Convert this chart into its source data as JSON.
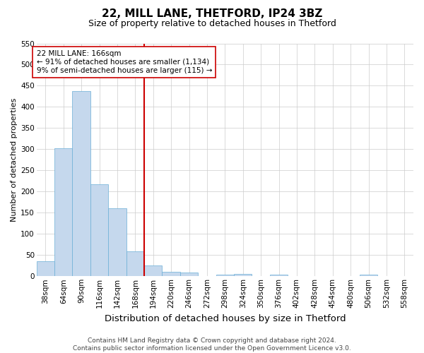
{
  "title1": "22, MILL LANE, THETFORD, IP24 3BZ",
  "title2": "Size of property relative to detached houses in Thetford",
  "xlabel": "Distribution of detached houses by size in Thetford",
  "ylabel": "Number of detached properties",
  "categories": [
    "38sqm",
    "64sqm",
    "90sqm",
    "116sqm",
    "142sqm",
    "168sqm",
    "194sqm",
    "220sqm",
    "246sqm",
    "272sqm",
    "298sqm",
    "324sqm",
    "350sqm",
    "376sqm",
    "402sqm",
    "428sqm",
    "454sqm",
    "480sqm",
    "506sqm",
    "532sqm",
    "558sqm"
  ],
  "values": [
    35,
    302,
    438,
    217,
    160,
    58,
    25,
    11,
    8,
    0,
    4,
    5,
    0,
    3,
    0,
    0,
    0,
    0,
    4,
    0,
    0
  ],
  "bar_color": "#c5d8ed",
  "bar_edge_color": "#6aaed6",
  "vline_x_index": 5,
  "vline_color": "#cc0000",
  "annotation_text": "22 MILL LANE: 166sqm\n← 91% of detached houses are smaller (1,134)\n9% of semi-detached houses are larger (115) →",
  "annotation_box_color": "white",
  "annotation_box_edge_color": "#cc0000",
  "ylim": [
    0,
    550
  ],
  "yticks": [
    0,
    50,
    100,
    150,
    200,
    250,
    300,
    350,
    400,
    450,
    500,
    550
  ],
  "footer": "Contains HM Land Registry data © Crown copyright and database right 2024.\nContains public sector information licensed under the Open Government Licence v3.0.",
  "title1_fontsize": 11,
  "title2_fontsize": 9,
  "xlabel_fontsize": 9.5,
  "ylabel_fontsize": 8,
  "tick_fontsize": 7.5,
  "footer_fontsize": 6.5,
  "annotation_fontsize": 7.5,
  "background_color": "#ffffff",
  "grid_color": "#cccccc"
}
